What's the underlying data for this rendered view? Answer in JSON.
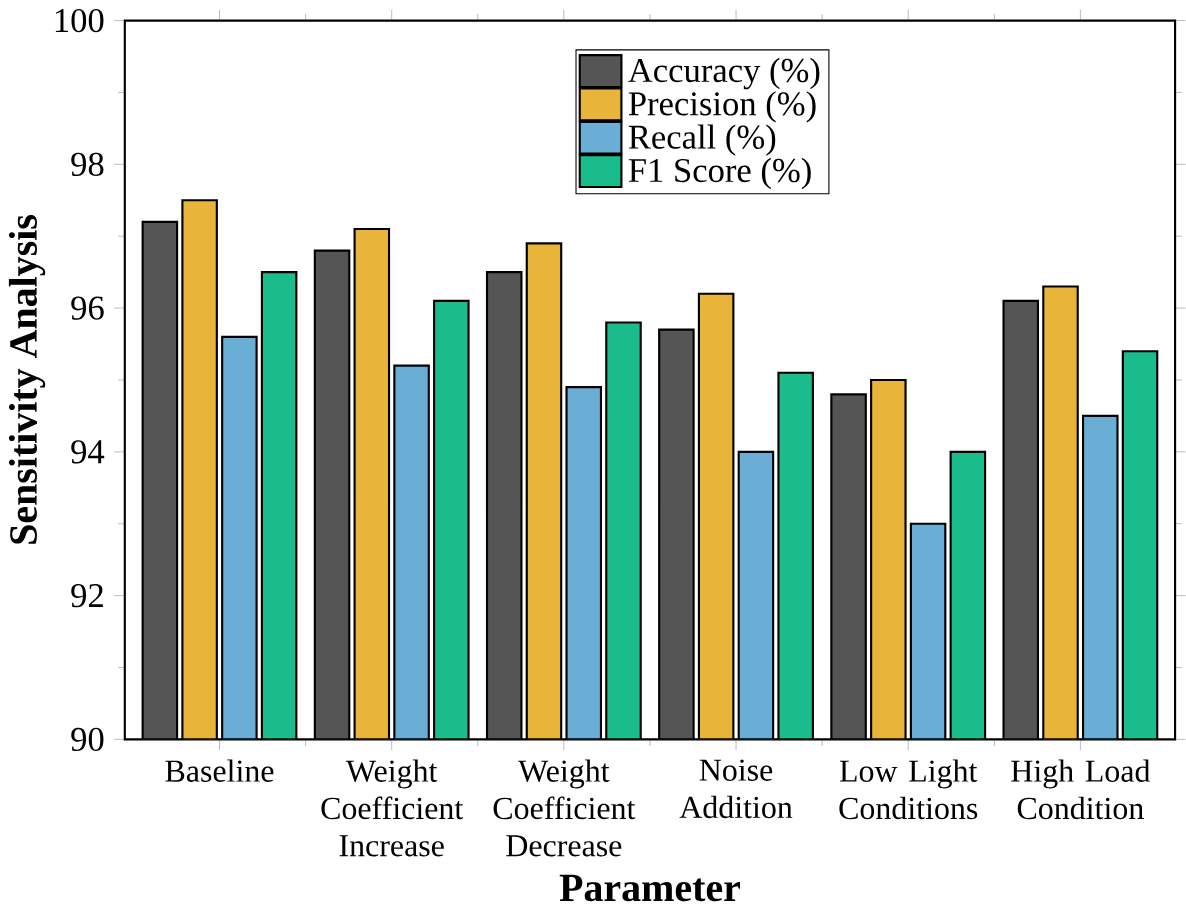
{
  "chart_data": {
    "type": "bar",
    "xlabel": "Parameter",
    "ylabel": "Sensitivity Analysis",
    "categories": [
      "Baseline",
      "Weight Coefficient Increase",
      "Weight Coefficient Decrease",
      "Noise Addition",
      "Low Light Conditions",
      "High Load Condition"
    ],
    "series": [
      {
        "name": "Accuracy (%)",
        "color": "#555555",
        "values": [
          97.2,
          96.8,
          96.5,
          95.7,
          94.8,
          96.1
        ]
      },
      {
        "name": "Precision (%)",
        "color": "#e8b53a",
        "values": [
          97.5,
          97.1,
          96.9,
          96.2,
          95.0,
          96.3
        ]
      },
      {
        "name": "Recall (%)",
        "color": "#6aaed6",
        "values": [
          95.6,
          95.2,
          94.9,
          94.0,
          93.0,
          94.5
        ]
      },
      {
        "name": "F1 Score (%)",
        "color": "#1abc8c",
        "values": [
          96.5,
          96.1,
          95.8,
          95.1,
          94.0,
          95.4
        ]
      }
    ],
    "ylim": [
      90,
      100
    ],
    "yticks": [
      90,
      92,
      94,
      96,
      98,
      100
    ],
    "grid": false,
    "legend": "top"
  }
}
